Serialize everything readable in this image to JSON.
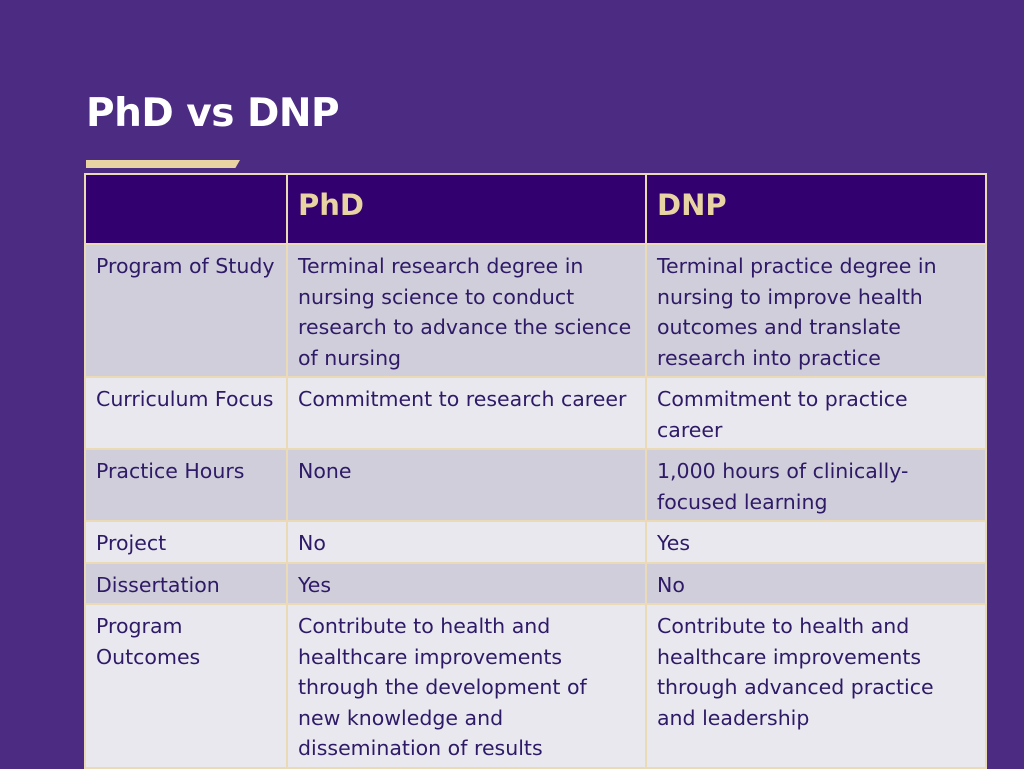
{
  "slide": {
    "title": "PhD vs DNP"
  },
  "table": {
    "headers": [
      "",
      "PhD",
      "DNP"
    ],
    "rows": [
      {
        "label": "Program of Study",
        "phd": "Terminal research degree in nursing science to conduct research to advance the science of nursing",
        "dnp": "Terminal practice degree in nursing to improve health outcomes and translate research into practice"
      },
      {
        "label": "Curriculum Focus",
        "phd": "Commitment to research career",
        "dnp": "Commitment to practice career"
      },
      {
        "label": "Practice Hours",
        "phd": "None",
        "dnp": "1,000 hours of clinically-focused learning"
      },
      {
        "label": "Project",
        "phd": "No",
        "dnp": "Yes"
      },
      {
        "label": "Dissertation",
        "phd": "Yes",
        "dnp": "No"
      },
      {
        "label": "Program Outcomes",
        "phd": "Contribute to health and healthcare improvements through the development of new knowledge and dissemination of results",
        "dnp": "Contribute to health and healthcare improvements through advanced practice and leadership"
      }
    ]
  },
  "colors": {
    "background": "#4b2c82",
    "header_fill": "#33006f",
    "header_text": "#e8d3a2",
    "row_dark": "#d0ceda",
    "row_light": "#e9e8ef",
    "body_text": "#2e1a66",
    "accent_underline": "#e8d3a2"
  }
}
